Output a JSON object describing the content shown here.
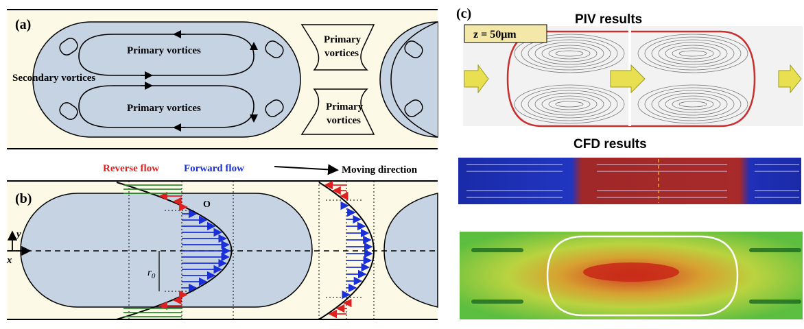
{
  "panel_a": {
    "tag": "(a)",
    "primary_top": "Primary vortices",
    "primary_bottom": "Primary vortices",
    "secondary": "Secondary vortices",
    "gap_top_1": "Primary",
    "gap_top_2": "vortices",
    "gap_bottom_1": "Primary",
    "gap_bottom_2": "vortices"
  },
  "panel_b": {
    "tag": "(b)",
    "reverse_flow": "Reverse flow",
    "forward_flow": "Forward flow",
    "moving_direction": "Moving direction",
    "origin": "O",
    "axis_y": "y",
    "axis_x": "x",
    "radius": "r",
    "radius_sub": "0"
  },
  "panel_c": {
    "tag": "(c)",
    "piv_title": "PIV results",
    "z_label": "z = 50μm",
    "cfd_title": "CFD results"
  },
  "colors": {
    "slug": "#c5d3e2",
    "channel_bg": "#fcfae6",
    "reverse": "#e02020",
    "forward": "#1a2fd8",
    "green": "#2a8a2a"
  }
}
